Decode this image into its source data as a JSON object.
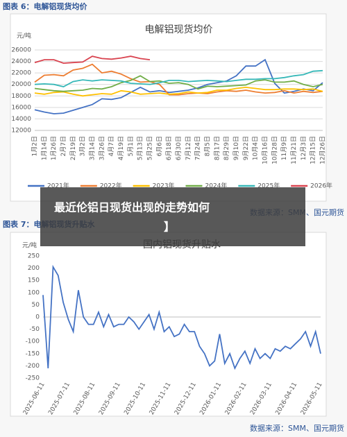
{
  "figure1": {
    "caption": "图表 6：电解铝现货均价",
    "source": "数据来源：SMM、国元期货",
    "chart_data": {
      "type": "line",
      "title": "电解铝现货均价",
      "y_label": "元/吨",
      "grid": true,
      "legend": "bottom",
      "categories": [
        "1月2日",
        "1月14日",
        "1月26日",
        "2月7日",
        "2月19日",
        "3月2日",
        "3月14日",
        "3月26日",
        "4月7日",
        "4月19日",
        "5月1日",
        "5月13日",
        "5月25日",
        "6月6日",
        "6月18日",
        "6月30日",
        "7月12日",
        "7月24日",
        "8月5日",
        "8月17日",
        "8月29日",
        "9月10日",
        "9月22日",
        "10月4日",
        "10月16日",
        "10月28日",
        "11月9日",
        "11月21日",
        "12月3日",
        "12月15日",
        "12月26日"
      ],
      "series": [
        {
          "name": "2021年",
          "color": "#4472c4",
          "values": [
            15600,
            15200,
            14900,
            15000,
            15500,
            16000,
            16500,
            17500,
            17400,
            17700,
            18600,
            19500,
            18700,
            18900,
            18600,
            18800,
            19000,
            19400,
            20000,
            20300,
            20600,
            21500,
            23200,
            23200,
            24300,
            20200,
            18500,
            18800,
            19200,
            18900,
            20300
          ]
        },
        {
          "name": "2022年",
          "color": "#ed7d31",
          "values": [
            20400,
            21600,
            21700,
            21500,
            22500,
            22800,
            23500,
            22000,
            22300,
            21800,
            21000,
            20400,
            20500,
            20000,
            18200,
            18200,
            18400,
            18500,
            18400,
            18700,
            18900,
            18800,
            19000,
            18700,
            18500,
            18600,
            18900,
            18500,
            18800,
            18600,
            18800
          ]
        },
        {
          "name": "2023年",
          "color": "#ffc000",
          "values": [
            18500,
            18300,
            18600,
            18700,
            18300,
            18000,
            18200,
            18400,
            18300,
            18900,
            18700,
            18300,
            18400,
            18500,
            18300,
            18400,
            18700,
            18500,
            18600,
            19000,
            19000,
            19300,
            19500,
            19300,
            19100,
            19100,
            19200,
            19200,
            19100,
            19200,
            18800
          ]
        },
        {
          "name": "2024年",
          "color": "#70ad47",
          "values": [
            19300,
            19100,
            18900,
            18800,
            18900,
            19000,
            19300,
            19200,
            19600,
            20300,
            20700,
            21500,
            20500,
            20600,
            20200,
            20300,
            20000,
            19200,
            19700,
            19600,
            19700,
            19800,
            19900,
            20600,
            20800,
            20400,
            20400,
            20600,
            20000,
            19600,
            20000
          ]
        },
        {
          "name": "2025年",
          "color": "#36b8b8",
          "values": [
            20000,
            20100,
            20000,
            19600,
            20500,
            20800,
            20600,
            20800,
            20700,
            20600,
            20200,
            20100,
            20000,
            20300,
            20700,
            20700,
            20500,
            20600,
            20700,
            20600,
            20500,
            20700,
            20900,
            20900,
            21000,
            21000,
            21200,
            21500,
            21700,
            22300,
            22400
          ]
        },
        {
          "name": "2026年",
          "color": "#d9434f",
          "values": [
            23800,
            24300,
            24300,
            23700,
            23800,
            23900,
            24900,
            24500,
            24400,
            24600,
            24900,
            24500,
            24300,
            null,
            null,
            null,
            null,
            null,
            null,
            null,
            null,
            null,
            null,
            null,
            null,
            null,
            null,
            null,
            null,
            null,
            null
          ]
        }
      ],
      "ylim": [
        12000,
        26000
      ],
      "yticks": [
        12000,
        14000,
        16000,
        18000,
        20000,
        22000,
        24000,
        26000
      ]
    }
  },
  "figure2": {
    "caption": "图表 7：电解铝现货升贴水",
    "source": "数据来源：SMM、国元期货",
    "chart_data": {
      "type": "line",
      "title": "国内铝现货升贴水",
      "y_label": "元/吨",
      "grid": false,
      "categories": [
        "2025-06-11",
        null,
        null,
        null,
        null,
        "2025-07-11",
        null,
        null,
        null,
        null,
        "2025-08-11",
        null,
        null,
        null,
        null,
        "2025-09-11",
        null,
        null,
        null,
        null,
        "2025-10-11",
        null,
        null,
        null,
        null,
        "2025-11-11",
        null,
        null,
        null,
        null,
        "2025-12-11",
        null,
        null,
        null,
        null,
        "2026-01-11",
        null,
        null,
        null,
        null,
        "2026-02-11",
        null,
        null,
        null,
        null,
        "2026-03-11",
        null,
        null,
        null,
        null,
        "2026-04-11",
        null,
        null,
        null,
        null,
        "2026-05-11"
      ],
      "color": "#4472c4",
      "values": [
        90,
        -210,
        205,
        170,
        60,
        -10,
        -60,
        110,
        0,
        -30,
        -30,
        20,
        -40,
        10,
        -40,
        -30,
        -30,
        0,
        -20,
        -50,
        -20,
        10,
        -50,
        20,
        -60,
        -40,
        -80,
        -70,
        -30,
        -60,
        -60,
        -120,
        -150,
        -200,
        -180,
        -70,
        -190,
        -150,
        -210,
        -170,
        -140,
        -190,
        -130,
        -170,
        -150,
        -170,
        -130,
        -140,
        -120,
        -130,
        -110,
        -90,
        -60,
        -120,
        -60,
        -150
      ],
      "ylim": [
        -250,
        250
      ],
      "yticks": [
        -250,
        -200,
        -150,
        -100,
        -50,
        0,
        50,
        100,
        150,
        200,
        250
      ]
    }
  },
  "overlay": {
    "lines": [
      "最近伦铝日现货出现的走势如何",
      "】"
    ]
  }
}
